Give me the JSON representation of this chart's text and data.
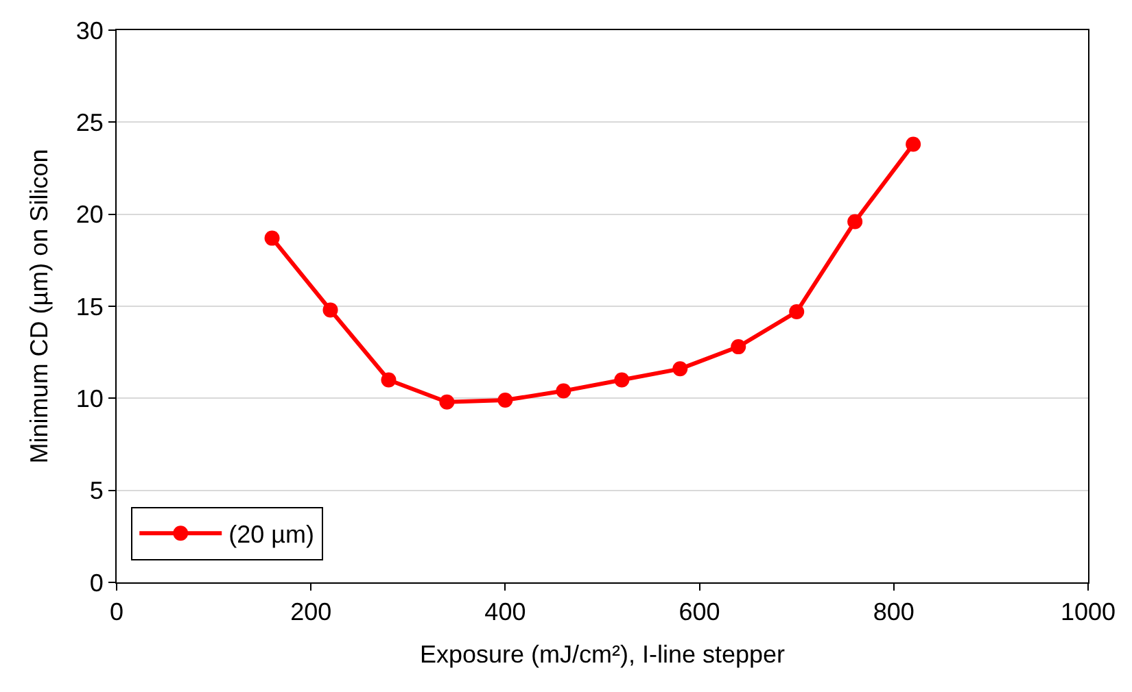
{
  "chart_data": {
    "type": "line",
    "xlabel": "Exposure (mJ/cm²), I-line stepper",
    "ylabel": "Minimum CD (µm) on Silicon",
    "x": [
      160,
      220,
      280,
      340,
      400,
      460,
      520,
      580,
      640,
      700,
      760,
      820
    ],
    "series": [
      {
        "name": "(20 µm)",
        "color": "#ff0000",
        "values": [
          18.7,
          14.8,
          11.0,
          9.8,
          9.9,
          10.4,
          11.0,
          11.6,
          12.8,
          14.7,
          19.6,
          23.8
        ]
      }
    ],
    "xlim": [
      0,
      1000
    ],
    "xticks": [
      0,
      200,
      400,
      600,
      800,
      1000
    ],
    "ylim": [
      0,
      30
    ],
    "yticks": [
      0,
      5,
      10,
      15,
      20,
      25,
      30
    ],
    "grid": "y",
    "legend": "bottom left",
    "marker": "circle",
    "line_style": "solid"
  }
}
